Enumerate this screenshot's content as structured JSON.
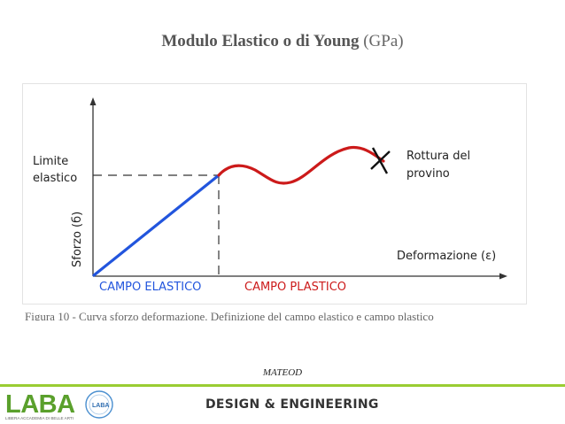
{
  "slide": {
    "title_main": "Modulo Elastico o di Young",
    "title_unit": "(GPa)",
    "author": "MATEOD",
    "footer_label": "DESIGN & ENGINEERING"
  },
  "logo": {
    "text": "LABA",
    "subtitle": "LIBERA ACCADEMIA DI BELLE ARTI",
    "seal_text": "LABA",
    "color": "#5aa02c"
  },
  "diagram": {
    "y_axis_label": "Sforzo (б)",
    "x_axis_label": "Deformazione (ε)",
    "limit_label_line1": "Limite",
    "limit_label_line2": "elastico",
    "rupture_label_line1": "Rottura del",
    "rupture_label_line2": "provino",
    "elastic_region_label": "CAMPO ELASTICO",
    "plastic_region_label": "CAMPO PLASTICO",
    "elastic_color": "#2255dd",
    "plastic_color": "#cc1a1a"
  },
  "caption": "Figura 10 - Curva sforzo deformazione. Definizione del campo elastico e campo plastico"
}
